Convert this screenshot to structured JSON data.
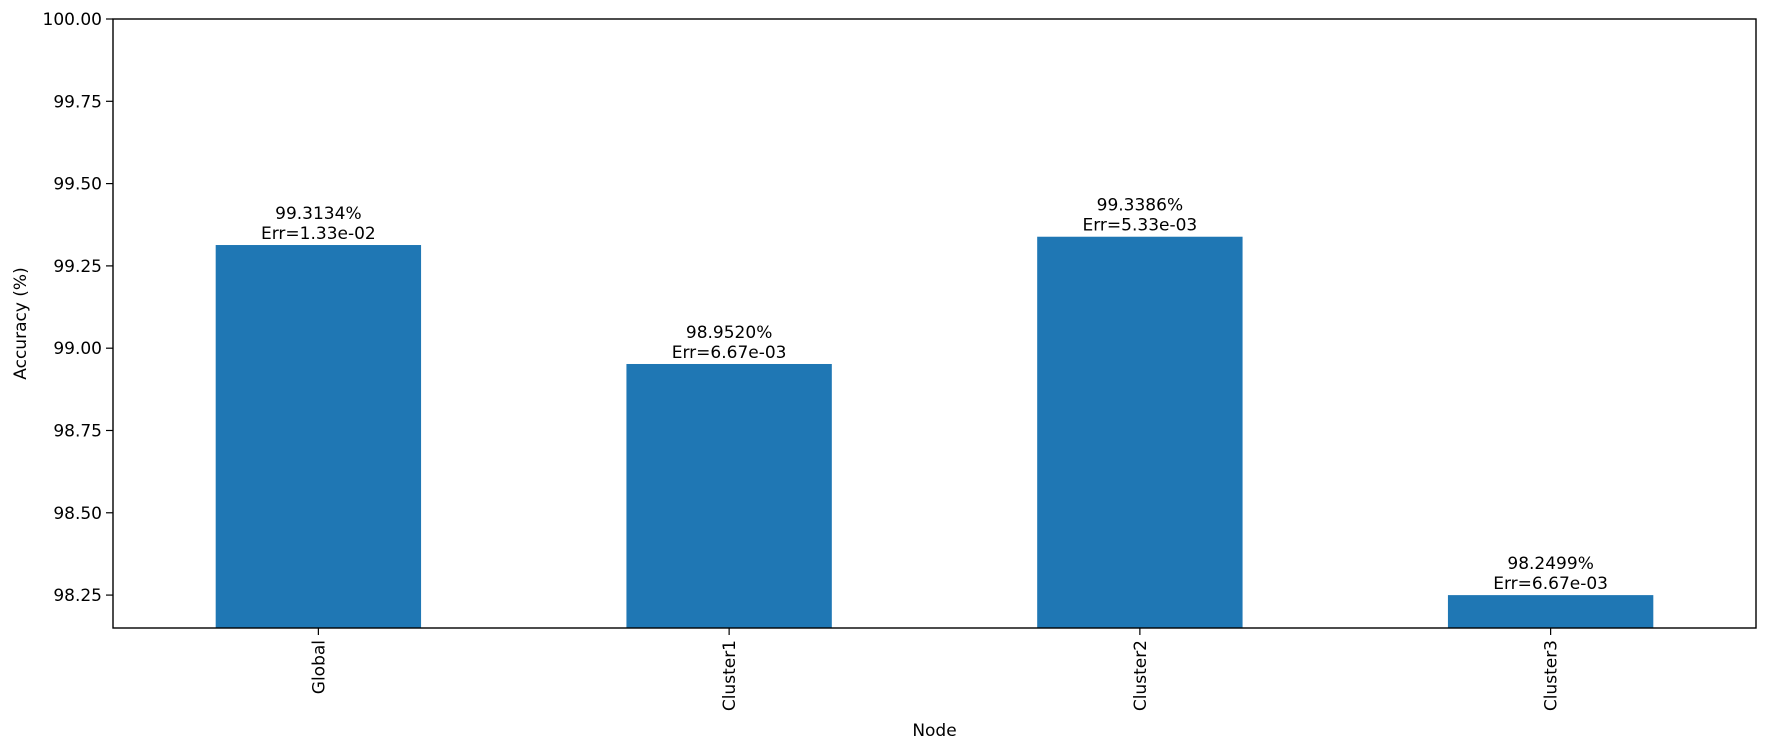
{
  "chart_data": {
    "type": "bar",
    "categories": [
      "Global",
      "Cluster1",
      "Cluster2",
      "Cluster3"
    ],
    "values": [
      99.3134,
      98.952,
      99.3386,
      98.2499
    ],
    "bar_labels": [
      [
        "99.3134%",
        "Err=1.33e-02"
      ],
      [
        "98.9520%",
        "Err=6.67e-03"
      ],
      [
        "99.3386%",
        "Err=5.33e-03"
      ],
      [
        "98.2499%",
        "Err=6.67e-03"
      ]
    ],
    "title": "",
    "xlabel": "Node",
    "ylabel": "Accuracy (%)",
    "ylim": [
      98.15,
      100.0
    ],
    "yticks": [
      "98.25",
      "98.50",
      "98.75",
      "99.00",
      "99.25",
      "99.50",
      "99.75",
      "100.00"
    ],
    "grid": false,
    "bar_color": "#1f77b4"
  }
}
